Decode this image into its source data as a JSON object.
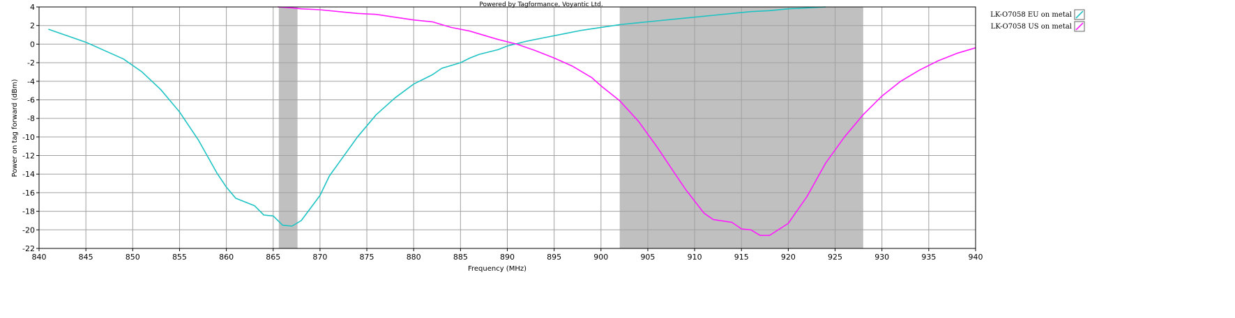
{
  "chart_data": {
    "type": "line",
    "title": "Powered by Tagformance, Voyantic Ltd.",
    "xlabel": "Frequency (MHz)",
    "ylabel": "Power on tag forward (dBm)",
    "xlim": [
      840,
      940
    ],
    "ylim": [
      -22,
      4
    ],
    "x_ticks": [
      840,
      845,
      850,
      855,
      860,
      865,
      870,
      875,
      880,
      885,
      890,
      895,
      900,
      905,
      910,
      915,
      920,
      925,
      930,
      935,
      940
    ],
    "y_ticks": [
      4,
      2,
      0,
      -2,
      -4,
      -6,
      -8,
      -10,
      -12,
      -14,
      -16,
      -18,
      -20,
      -22
    ],
    "grid": true,
    "legend_position": "right",
    "shaded_bands": [
      {
        "from": 865.6,
        "to": 867.6,
        "color": "#c0c0c0"
      },
      {
        "from": 902,
        "to": 928,
        "color": "#c0c0c0"
      }
    ],
    "series": [
      {
        "name": "LK-O7058 EU on metal",
        "color": "#1fc3c3",
        "points": [
          [
            841,
            1.6
          ],
          [
            843,
            0.9
          ],
          [
            845,
            0.2
          ],
          [
            847,
            -0.7
          ],
          [
            849,
            -1.6
          ],
          [
            851,
            -3.0
          ],
          [
            853,
            -4.9
          ],
          [
            855,
            -7.3
          ],
          [
            857,
            -10.3
          ],
          [
            859,
            -13.9
          ],
          [
            860,
            -15.4
          ],
          [
            861,
            -16.6
          ],
          [
            863,
            -17.4
          ],
          [
            864,
            -18.4
          ],
          [
            865,
            -18.5
          ],
          [
            866,
            -19.5
          ],
          [
            867,
            -19.6
          ],
          [
            868,
            -19.0
          ],
          [
            870,
            -16.3
          ],
          [
            871,
            -14.2
          ],
          [
            872,
            -12.8
          ],
          [
            874,
            -10.0
          ],
          [
            876,
            -7.6
          ],
          [
            878,
            -5.8
          ],
          [
            880,
            -4.3
          ],
          [
            882,
            -3.3
          ],
          [
            883,
            -2.6
          ],
          [
            885,
            -2.0
          ],
          [
            886,
            -1.5
          ],
          [
            887,
            -1.1
          ],
          [
            889,
            -0.6
          ],
          [
            890,
            -0.2
          ],
          [
            892,
            0.3
          ],
          [
            894,
            0.7
          ],
          [
            896,
            1.1
          ],
          [
            898,
            1.5
          ],
          [
            900,
            1.8
          ],
          [
            902,
            2.1
          ],
          [
            904,
            2.3
          ],
          [
            906,
            2.5
          ],
          [
            908,
            2.7
          ],
          [
            910,
            2.9
          ],
          [
            912,
            3.1
          ],
          [
            914,
            3.3
          ],
          [
            916,
            3.5
          ],
          [
            918,
            3.6
          ],
          [
            920,
            3.8
          ],
          [
            922,
            3.9
          ],
          [
            924,
            4.0
          ]
        ]
      },
      {
        "name": "LK-O7058 US on metal",
        "color": "#ff1aff",
        "points": [
          [
            865.5,
            4.0
          ],
          [
            867,
            3.9
          ],
          [
            868,
            3.8
          ],
          [
            870,
            3.7
          ],
          [
            872,
            3.5
          ],
          [
            874,
            3.3
          ],
          [
            876,
            3.2
          ],
          [
            878,
            2.9
          ],
          [
            880,
            2.6
          ],
          [
            882,
            2.4
          ],
          [
            884,
            1.8
          ],
          [
            886,
            1.4
          ],
          [
            888,
            0.8
          ],
          [
            889,
            0.5
          ],
          [
            891,
            0.0
          ],
          [
            893,
            -0.7
          ],
          [
            895,
            -1.5
          ],
          [
            897,
            -2.4
          ],
          [
            899,
            -3.6
          ],
          [
            900,
            -4.5
          ],
          [
            902,
            -6.1
          ],
          [
            904,
            -8.3
          ],
          [
            906,
            -11.1
          ],
          [
            908,
            -14.1
          ],
          [
            909,
            -15.6
          ],
          [
            911,
            -18.2
          ],
          [
            912,
            -18.9
          ],
          [
            914,
            -19.2
          ],
          [
            915,
            -19.9
          ],
          [
            916,
            -20.0
          ],
          [
            917,
            -20.6
          ],
          [
            918,
            -20.6
          ],
          [
            920,
            -19.3
          ],
          [
            922,
            -16.4
          ],
          [
            924,
            -12.8
          ],
          [
            926,
            -10.0
          ],
          [
            928,
            -7.6
          ],
          [
            930,
            -5.6
          ],
          [
            932,
            -4.0
          ],
          [
            934,
            -2.8
          ],
          [
            936,
            -1.8
          ],
          [
            938,
            -1.0
          ],
          [
            940,
            -0.4
          ]
        ]
      }
    ]
  }
}
